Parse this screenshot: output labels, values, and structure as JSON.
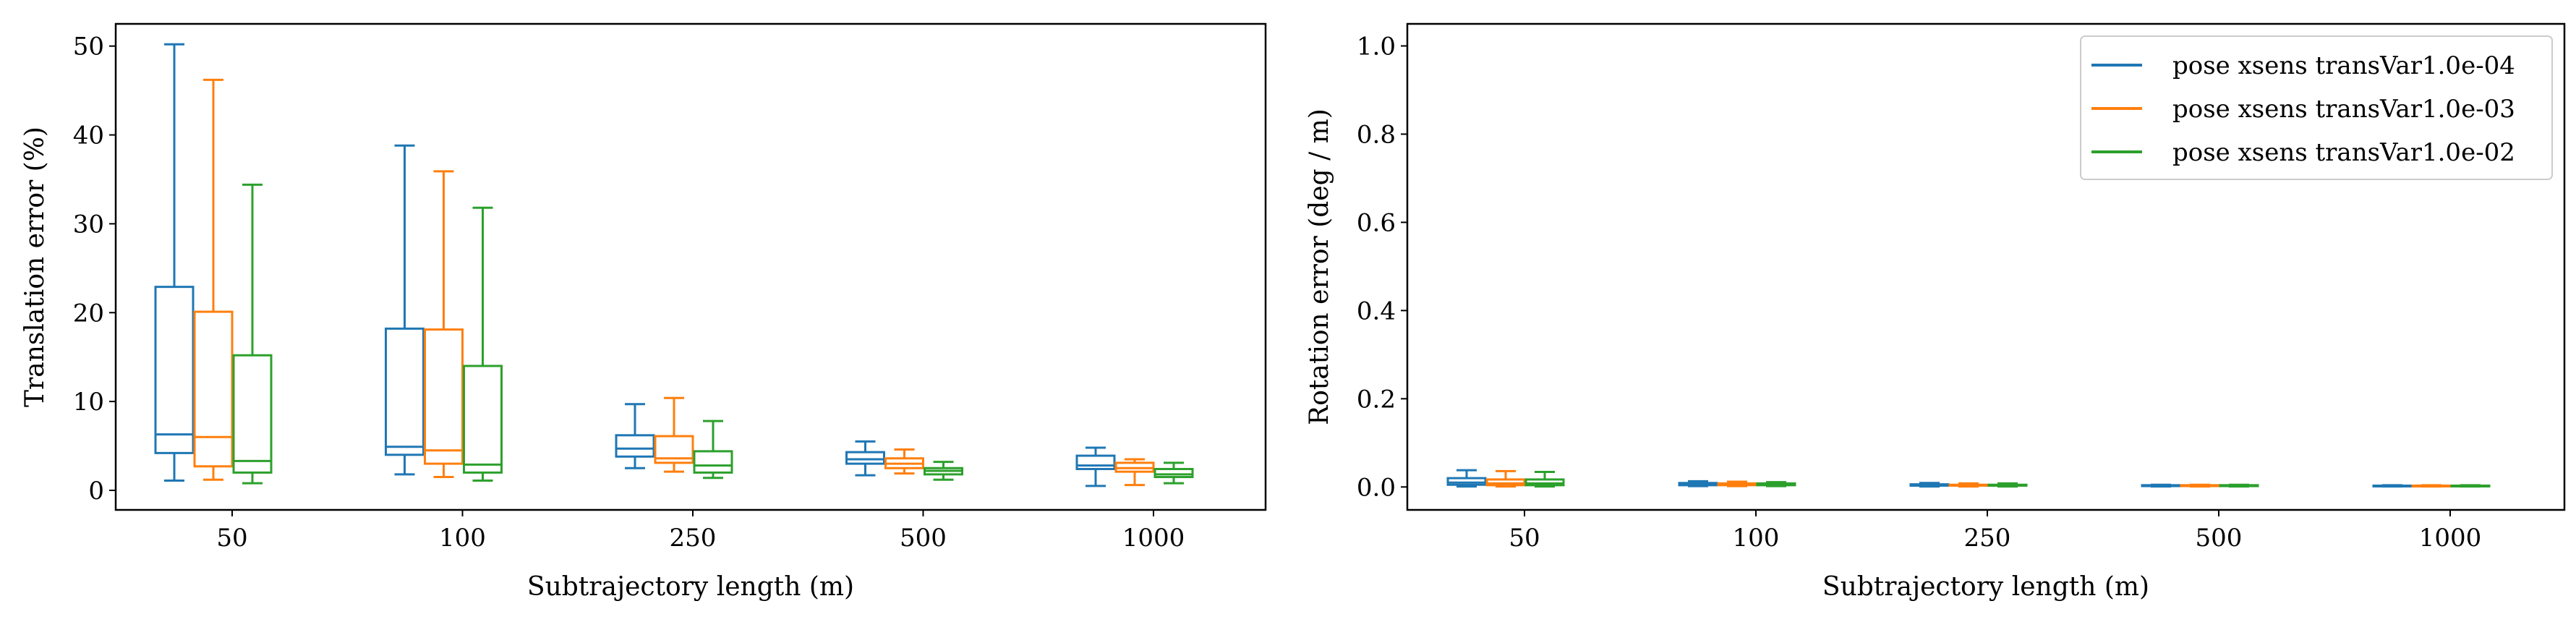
{
  "chart_data": [
    {
      "type": "box",
      "xlabel": "Subtrajectory length (m)",
      "ylabel": "Translation error (%)",
      "categories": [
        "50",
        "100",
        "250",
        "500",
        "1000"
      ],
      "ylim": [
        -2.2,
        52.5
      ],
      "yticks": [
        0,
        10,
        20,
        30,
        40,
        50
      ],
      "grid": false,
      "series": [
        {
          "color": "#1f77b4",
          "boxes": [
            {
              "whislo": 1.1,
              "q1": 4.2,
              "med": 6.3,
              "q3": 22.9,
              "whishi": 50.2
            },
            {
              "whislo": 1.8,
              "q1": 4.0,
              "med": 4.9,
              "q3": 18.2,
              "whishi": 38.8
            },
            {
              "whislo": 2.5,
              "q1": 3.8,
              "med": 4.7,
              "q3": 6.2,
              "whishi": 9.7
            },
            {
              "whislo": 1.7,
              "q1": 3.0,
              "med": 3.5,
              "q3": 4.3,
              "whishi": 5.5
            },
            {
              "whislo": 0.5,
              "q1": 2.4,
              "med": 2.8,
              "q3": 3.9,
              "whishi": 4.8
            }
          ]
        },
        {
          "color": "#ff7f0e",
          "boxes": [
            {
              "whislo": 1.2,
              "q1": 2.7,
              "med": 6.0,
              "q3": 20.1,
              "whishi": 46.2
            },
            {
              "whislo": 1.5,
              "q1": 3.0,
              "med": 4.5,
              "q3": 18.1,
              "whishi": 35.9
            },
            {
              "whislo": 2.1,
              "q1": 3.1,
              "med": 3.6,
              "q3": 6.1,
              "whishi": 10.4
            },
            {
              "whislo": 1.9,
              "q1": 2.5,
              "med": 3.0,
              "q3": 3.6,
              "whishi": 4.6
            },
            {
              "whislo": 0.6,
              "q1": 2.1,
              "med": 2.5,
              "q3": 3.1,
              "whishi": 3.5
            }
          ]
        },
        {
          "color": "#2ca02c",
          "boxes": [
            {
              "whislo": 0.8,
              "q1": 2.0,
              "med": 3.3,
              "q3": 15.2,
              "whishi": 34.4
            },
            {
              "whislo": 1.1,
              "q1": 2.0,
              "med": 2.9,
              "q3": 14.0,
              "whishi": 31.8
            },
            {
              "whislo": 1.4,
              "q1": 2.0,
              "med": 2.8,
              "q3": 4.4,
              "whishi": 7.8
            },
            {
              "whislo": 1.2,
              "q1": 1.8,
              "med": 2.2,
              "q3": 2.5,
              "whishi": 3.2
            },
            {
              "whislo": 0.8,
              "q1": 1.5,
              "med": 1.8,
              "q3": 2.4,
              "whishi": 3.1
            }
          ]
        }
      ]
    },
    {
      "type": "box",
      "xlabel": "Subtrajectory length (m)",
      "ylabel": "Rotation error (deg / m)",
      "categories": [
        "50",
        "100",
        "250",
        "500",
        "1000"
      ],
      "ylim": [
        -0.052,
        1.05
      ],
      "yticks": [
        "0.0",
        "0.2",
        "0.4",
        "0.6",
        "0.8",
        "1.0"
      ],
      "grid": false,
      "legend": {
        "placement": "top-right",
        "entries": [
          {
            "label": "pose xsens transVar1.0e-04",
            "color": "#1f77b4"
          },
          {
            "label": "pose xsens transVar1.0e-03",
            "color": "#ff7f0e"
          },
          {
            "label": "pose xsens transVar1.0e-02",
            "color": "#2ca02c"
          }
        ]
      },
      "series": [
        {
          "color": "#1f77b4",
          "boxes": [
            {
              "whislo": 0.001,
              "q1": 0.005,
              "med": 0.01,
              "q3": 0.02,
              "whishi": 0.038
            },
            {
              "whislo": 0.002,
              "q1": 0.004,
              "med": 0.006,
              "q3": 0.009,
              "whishi": 0.013
            },
            {
              "whislo": 0.001,
              "q1": 0.003,
              "med": 0.004,
              "q3": 0.006,
              "whishi": 0.009
            },
            {
              "whislo": 0.001,
              "q1": 0.002,
              "med": 0.003,
              "q3": 0.004,
              "whishi": 0.005
            },
            {
              "whislo": 0.001,
              "q1": 0.002,
              "med": 0.002,
              "q3": 0.003,
              "whishi": 0.004
            }
          ]
        },
        {
          "color": "#ff7f0e",
          "boxes": [
            {
              "whislo": 0.001,
              "q1": 0.004,
              "med": 0.008,
              "q3": 0.017,
              "whishi": 0.036
            },
            {
              "whislo": 0.002,
              "q1": 0.004,
              "med": 0.006,
              "q3": 0.008,
              "whishi": 0.012
            },
            {
              "whislo": 0.001,
              "q1": 0.003,
              "med": 0.004,
              "q3": 0.005,
              "whishi": 0.008
            },
            {
              "whislo": 0.001,
              "q1": 0.002,
              "med": 0.003,
              "q3": 0.004,
              "whishi": 0.005
            },
            {
              "whislo": 0.001,
              "q1": 0.002,
              "med": 0.002,
              "q3": 0.003,
              "whishi": 0.004
            }
          ]
        },
        {
          "color": "#2ca02c",
          "boxes": [
            {
              "whislo": 0.001,
              "q1": 0.004,
              "med": 0.008,
              "q3": 0.017,
              "whishi": 0.034
            },
            {
              "whislo": 0.002,
              "q1": 0.004,
              "med": 0.006,
              "q3": 0.008,
              "whishi": 0.011
            },
            {
              "whislo": 0.001,
              "q1": 0.003,
              "med": 0.004,
              "q3": 0.005,
              "whishi": 0.008
            },
            {
              "whislo": 0.001,
              "q1": 0.002,
              "med": 0.003,
              "q3": 0.004,
              "whishi": 0.005
            },
            {
              "whislo": 0.001,
              "q1": 0.002,
              "med": 0.002,
              "q3": 0.003,
              "whishi": 0.004
            }
          ]
        }
      ]
    }
  ]
}
